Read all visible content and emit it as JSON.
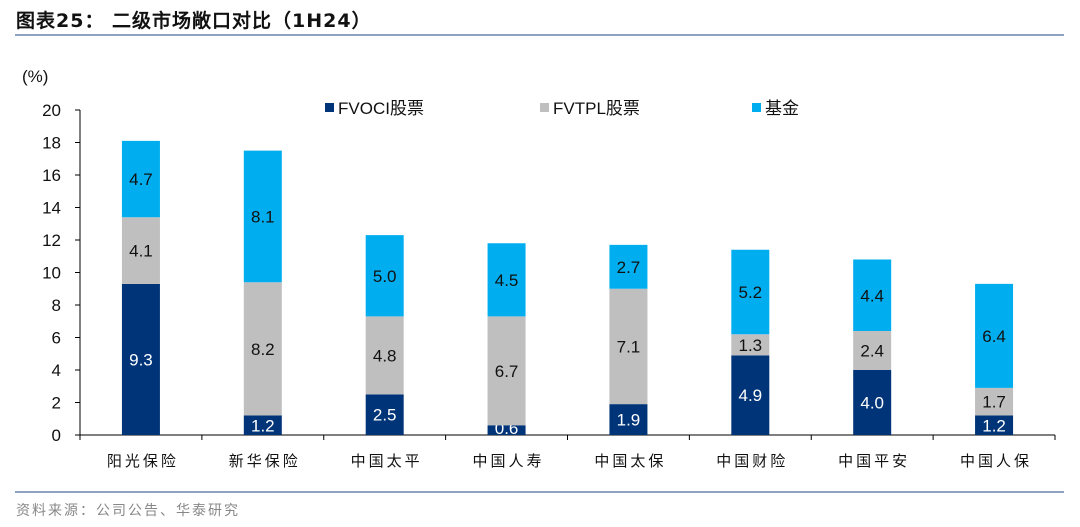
{
  "header": {
    "title": "图表25： 二级市场敞口对比（1H24）"
  },
  "footer": {
    "source": "资料来源：公司公告、华泰研究"
  },
  "chart_data": {
    "type": "bar",
    "stacked": true,
    "title": "二级市场敞口对比（1H24）",
    "ylabel": "(%)",
    "xlabel": "",
    "ylim": [
      0,
      20
    ],
    "yticks": [
      0,
      2,
      4,
      6,
      8,
      10,
      12,
      14,
      16,
      18,
      20
    ],
    "grid": false,
    "legend_position": "top",
    "categories": [
      "阳光保险",
      "新华保险",
      "中国太平",
      "中国人寿",
      "中国太保",
      "中国财险",
      "中国平安",
      "中国人保"
    ],
    "series": [
      {
        "name": "FVOCI股票",
        "color": "#003478",
        "label_color": "#ffffff",
        "values": [
          9.3,
          1.2,
          2.5,
          0.6,
          1.9,
          4.9,
          4.0,
          1.2
        ]
      },
      {
        "name": "FVTPL股票",
        "color": "#bfbfbf",
        "label_color": "#111111",
        "values": [
          4.1,
          8.2,
          4.8,
          6.7,
          7.1,
          1.3,
          2.4,
          1.7
        ]
      },
      {
        "name": "基金",
        "color": "#00aeef",
        "label_color": "#111111",
        "values": [
          4.7,
          8.1,
          5.0,
          4.5,
          2.7,
          5.2,
          4.4,
          6.4
        ]
      }
    ]
  }
}
